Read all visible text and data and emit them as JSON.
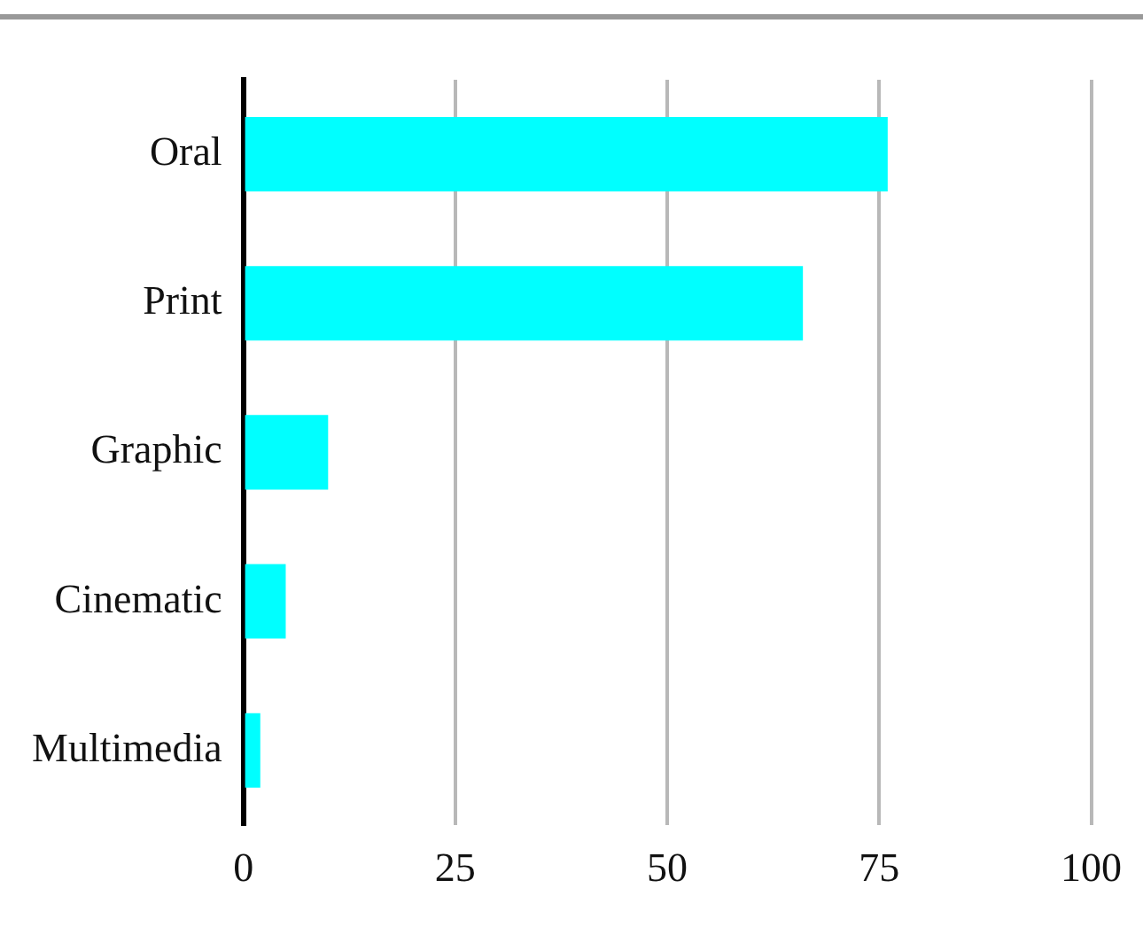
{
  "chart_data": {
    "type": "bar",
    "orientation": "horizontal",
    "categories": [
      "Oral",
      "Print",
      "Graphic",
      "Cinematic",
      "Multimedia"
    ],
    "values": [
      76,
      66,
      10,
      5,
      2
    ],
    "color": "#00ffff",
    "xlim": [
      0,
      100
    ],
    "xticks": [
      0,
      25,
      50,
      75,
      100
    ],
    "grid": "x",
    "legend": false
  }
}
